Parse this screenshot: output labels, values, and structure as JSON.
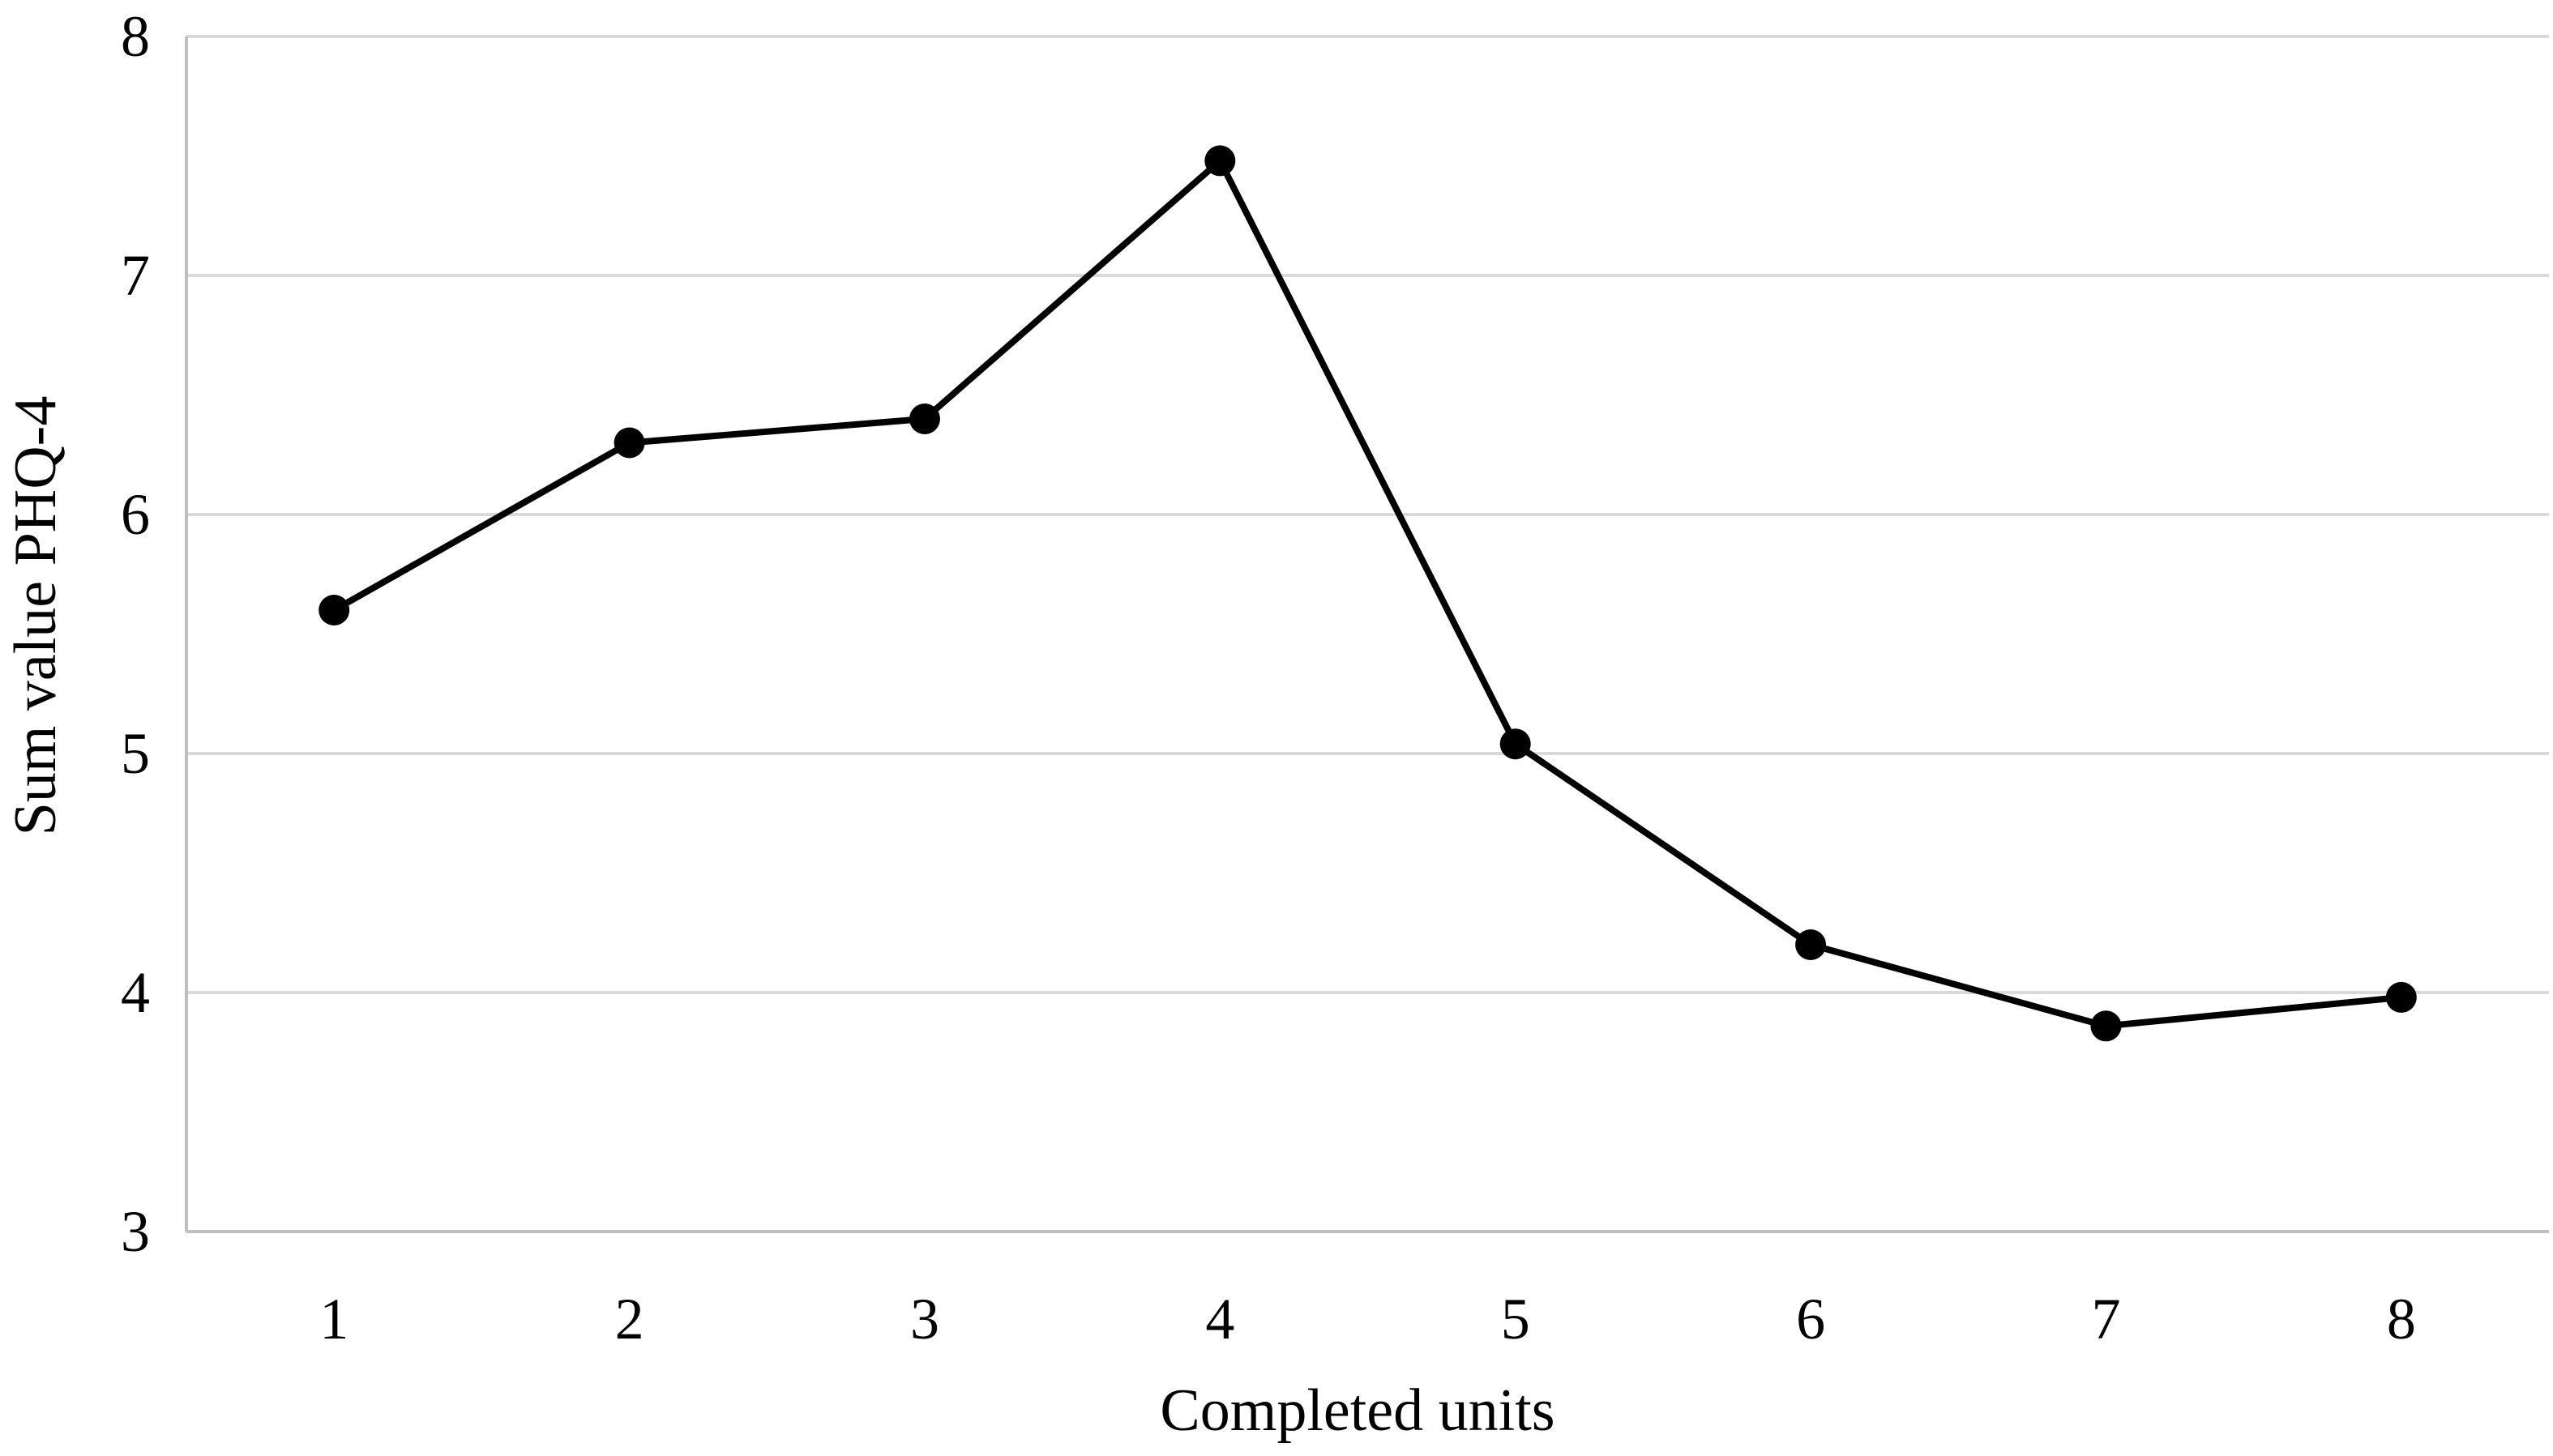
{
  "chart_data": {
    "type": "line",
    "title": "",
    "xlabel": "Completed units",
    "ylabel": "Sum value PHQ-4",
    "categories": [
      "1",
      "2",
      "3",
      "4",
      "5",
      "6",
      "7",
      "8"
    ],
    "series": [
      {
        "values": [
          5.6,
          6.3,
          6.4,
          7.48,
          5.04,
          4.2,
          3.86,
          3.98
        ]
      }
    ],
    "ylim": [
      3,
      8
    ],
    "yticks": [
      "3",
      "4",
      "5",
      "6",
      "7",
      "8"
    ],
    "grid": true,
    "legend": "none",
    "colors": {
      "line": "#000000",
      "marker": "#000000",
      "grid": "#d9d9d9",
      "axis": "#bfbfbf"
    }
  }
}
